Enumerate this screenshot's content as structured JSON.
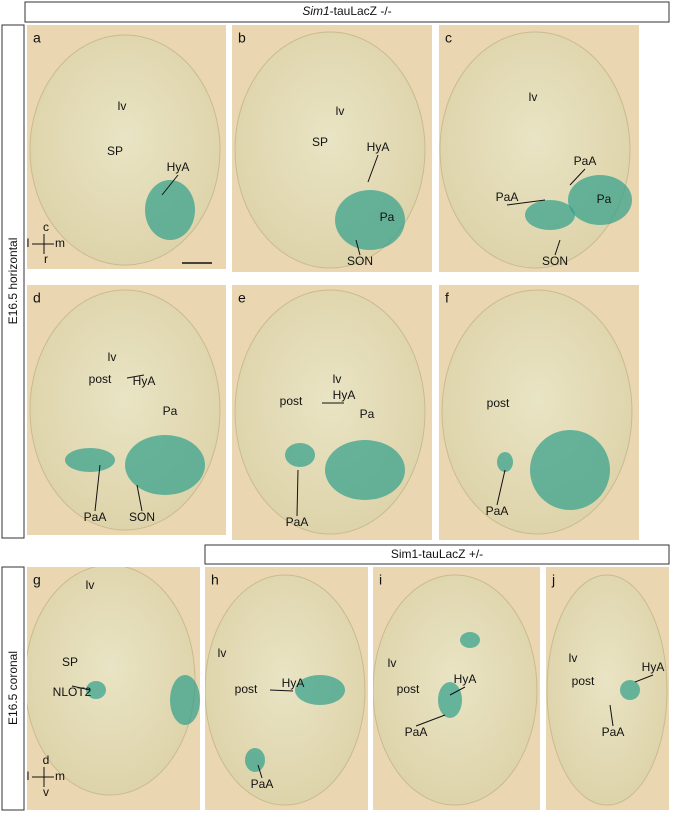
{
  "header_top": {
    "italic": "Sim1",
    "rest": "-tauLacZ -/-"
  },
  "side_top": "E16.5  horizontal",
  "header_bottom": "Sim1-tauLacZ +/-",
  "side_bottom": "E16.5  coronal",
  "axes_top": [
    "c",
    "l",
    "m",
    "r"
  ],
  "axes_bottom": [
    "d",
    "l",
    "m",
    "v"
  ],
  "panels": [
    {
      "letter": "a",
      "labels": [
        "lv",
        "SP",
        "HyA"
      ]
    },
    {
      "letter": "b",
      "labels": [
        "lv",
        "SP",
        "HyA",
        "Pa",
        "SON"
      ]
    },
    {
      "letter": "c",
      "labels": [
        "lv",
        "PaA",
        "PaA",
        "Pa",
        "SON"
      ]
    },
    {
      "letter": "d",
      "labels": [
        "lv",
        "post",
        "HyA",
        "Pa",
        "PaA",
        "SON"
      ]
    },
    {
      "letter": "e",
      "labels": [
        "lv",
        "post",
        "HyA",
        "Pa",
        "PaA"
      ]
    },
    {
      "letter": "f",
      "labels": [
        "post",
        "PaA"
      ]
    },
    {
      "letter": "g",
      "labels": [
        "lv",
        "SP",
        "NLOT2"
      ]
    },
    {
      "letter": "h",
      "labels": [
        "lv",
        "post",
        "HyA",
        "PaA"
      ]
    },
    {
      "letter": "i",
      "labels": [
        "lv",
        "post",
        "HyA",
        "PaA"
      ]
    },
    {
      "letter": "j",
      "labels": [
        "lv",
        "post",
        "HyA",
        "PaA"
      ]
    }
  ]
}
